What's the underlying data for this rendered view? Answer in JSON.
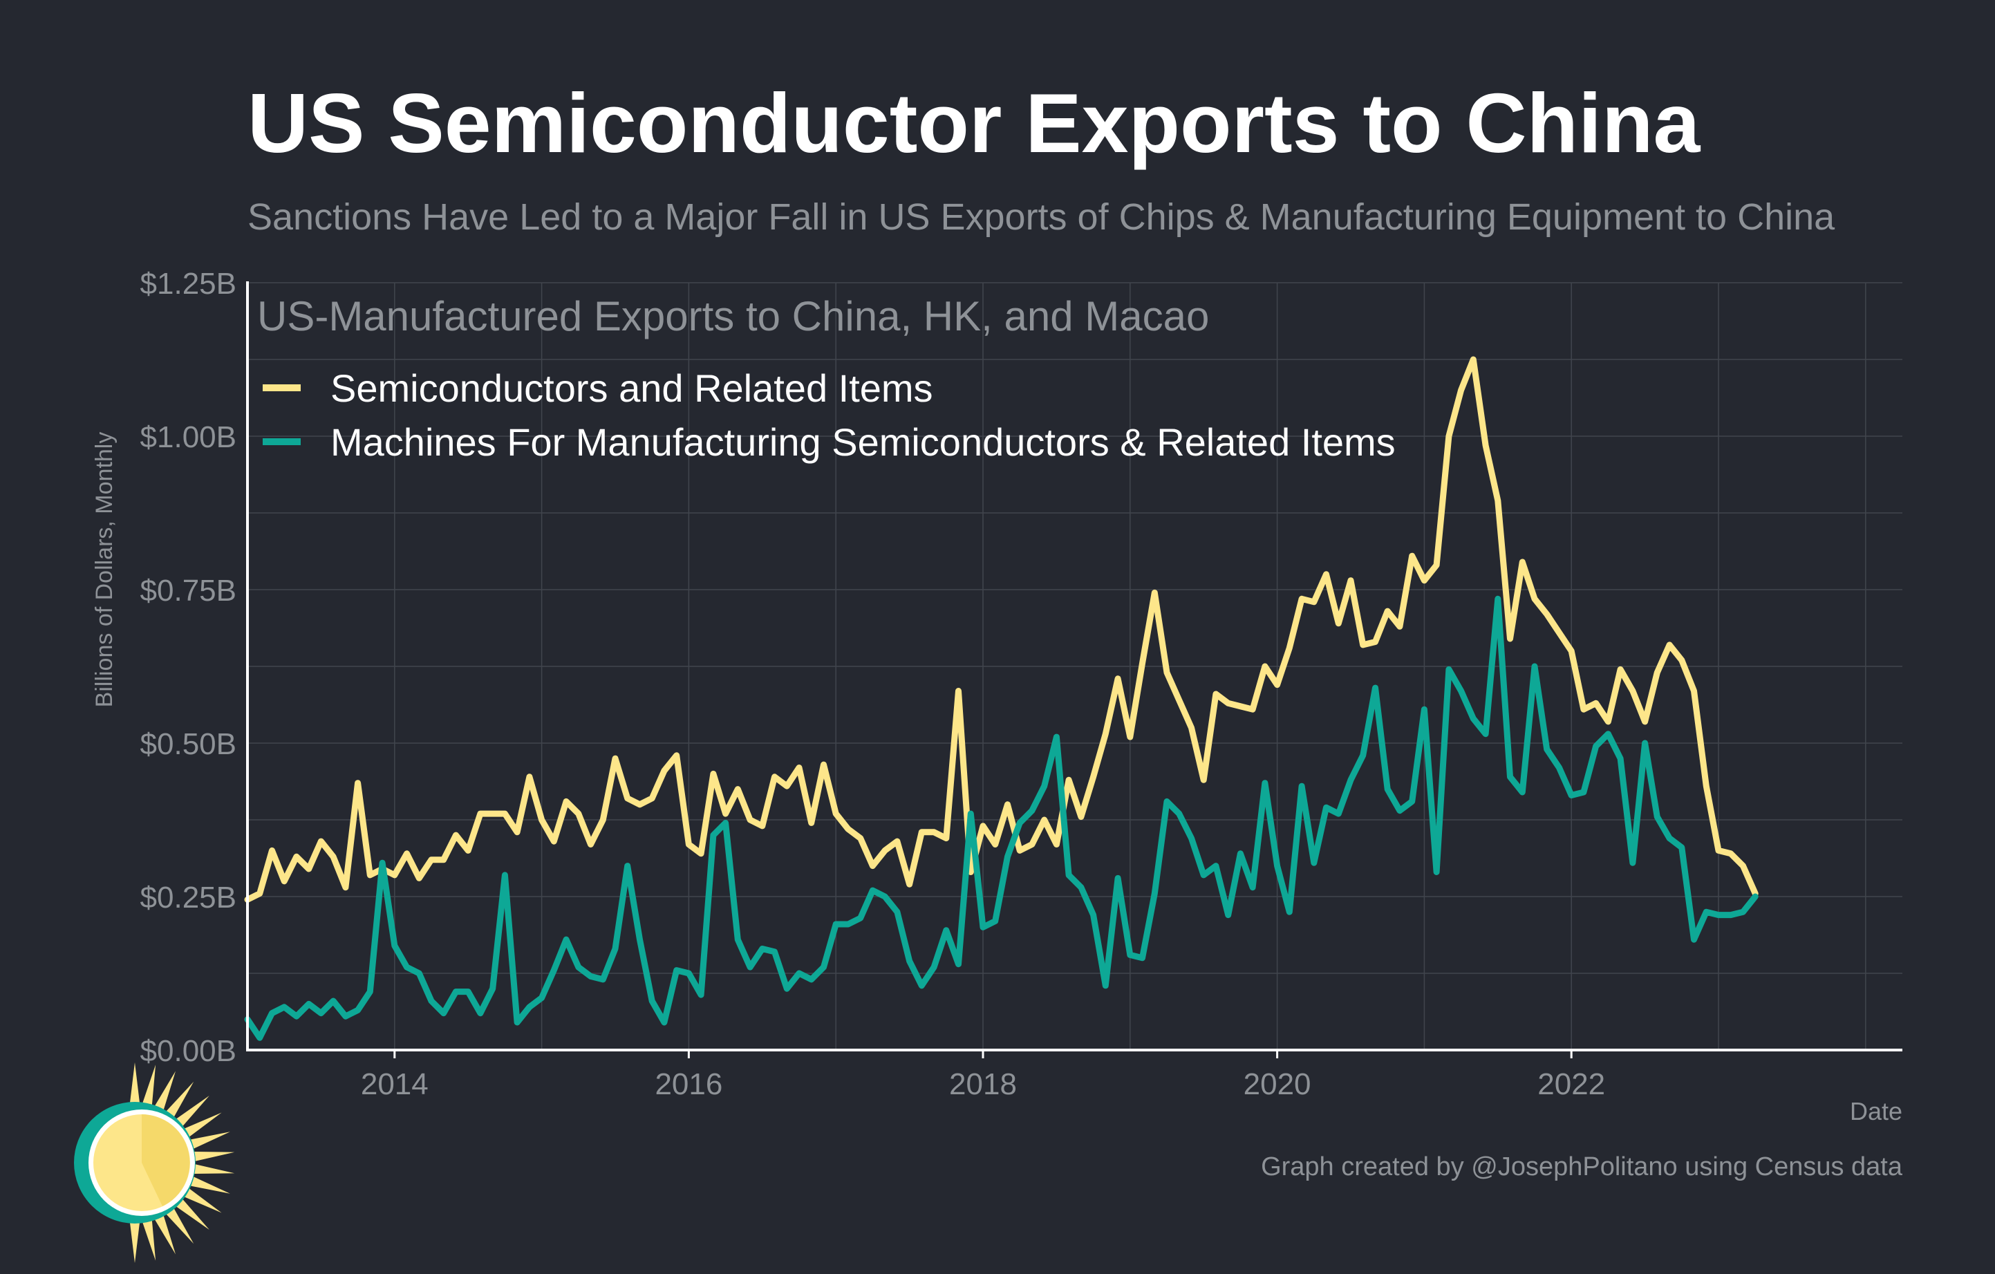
{
  "title": "US Semiconductor Exports to China",
  "subtitle": "Sanctions Have Led to a Major Fall in US Exports of Chips & Manufacturing Equipment to China",
  "credit": "Graph created by @JosephPolitano using Census data",
  "colors": {
    "background": "#252830",
    "grid": "#41454d",
    "axis": "#ffffff",
    "text_muted": "#8e9297",
    "semiconductors": "#fde68a",
    "machines": "#0ea896"
  },
  "chart_data": {
    "type": "line",
    "legend_title": "US-Manufactured Exports to China, HK, and Macao",
    "legend_position": "top-left",
    "xlabel": "Date",
    "ylabel": "Billions of Dollars, Monthly",
    "xlim": [
      2013.0,
      2024.25
    ],
    "ylim": [
      0,
      1.25
    ],
    "x_ticks": [
      2014,
      2016,
      2018,
      2020,
      2022
    ],
    "x_tick_labels": [
      "2014",
      "2016",
      "2018",
      "2020",
      "2022"
    ],
    "y_ticks": [
      0,
      0.25,
      0.5,
      0.75,
      1.0,
      1.25
    ],
    "y_tick_labels": [
      "$0.00B",
      "$0.25B",
      "$0.50B",
      "$0.75B",
      "$1.00B",
      "$1.25B"
    ],
    "grid": true,
    "x_start": "2013-01",
    "x_step": "month",
    "series": [
      {
        "name": "Semiconductors and Related Items",
        "color": "#fde68a",
        "values": [
          0.245,
          0.255,
          0.325,
          0.275,
          0.315,
          0.295,
          0.34,
          0.315,
          0.265,
          0.435,
          0.285,
          0.295,
          0.285,
          0.32,
          0.28,
          0.31,
          0.31,
          0.35,
          0.325,
          0.385,
          0.385,
          0.385,
          0.355,
          0.445,
          0.375,
          0.34,
          0.405,
          0.385,
          0.335,
          0.375,
          0.475,
          0.41,
          0.4,
          0.41,
          0.455,
          0.48,
          0.335,
          0.32,
          0.45,
          0.385,
          0.425,
          0.375,
          0.365,
          0.445,
          0.43,
          0.46,
          0.37,
          0.465,
          0.385,
          0.36,
          0.345,
          0.3,
          0.325,
          0.34,
          0.27,
          0.355,
          0.355,
          0.345,
          0.585,
          0.29,
          0.365,
          0.335,
          0.4,
          0.325,
          0.335,
          0.375,
          0.335,
          0.44,
          0.38,
          0.445,
          0.515,
          0.605,
          0.51,
          0.63,
          0.745,
          0.615,
          0.57,
          0.525,
          0.44,
          0.58,
          0.565,
          0.56,
          0.555,
          0.625,
          0.595,
          0.655,
          0.735,
          0.73,
          0.775,
          0.695,
          0.765,
          0.66,
          0.665,
          0.715,
          0.69,
          0.805,
          0.765,
          0.79,
          1.0,
          1.075,
          1.125,
          0.985,
          0.895,
          0.67,
          0.795,
          0.735,
          0.71,
          0.68,
          0.65,
          0.555,
          0.565,
          0.535,
          0.62,
          0.585,
          0.535,
          0.615,
          0.66,
          0.635,
          0.585,
          0.43,
          0.325,
          0.32,
          0.3,
          0.255
        ]
      },
      {
        "name": "Machines For Manufacturing Semiconductors & Related Items",
        "color": "#0ea896",
        "values": [
          0.05,
          0.02,
          0.06,
          0.07,
          0.055,
          0.075,
          0.06,
          0.08,
          0.055,
          0.065,
          0.095,
          0.305,
          0.17,
          0.135,
          0.125,
          0.08,
          0.06,
          0.095,
          0.095,
          0.06,
          0.1,
          0.285,
          0.045,
          0.07,
          0.085,
          0.13,
          0.18,
          0.135,
          0.12,
          0.115,
          0.165,
          0.3,
          0.18,
          0.08,
          0.045,
          0.13,
          0.125,
          0.09,
          0.35,
          0.37,
          0.18,
          0.135,
          0.165,
          0.16,
          0.1,
          0.125,
          0.115,
          0.135,
          0.205,
          0.205,
          0.215,
          0.26,
          0.25,
          0.225,
          0.145,
          0.105,
          0.135,
          0.195,
          0.14,
          0.385,
          0.2,
          0.21,
          0.315,
          0.37,
          0.39,
          0.43,
          0.51,
          0.285,
          0.265,
          0.22,
          0.105,
          0.28,
          0.155,
          0.15,
          0.255,
          0.405,
          0.385,
          0.345,
          0.285,
          0.3,
          0.22,
          0.32,
          0.265,
          0.435,
          0.3,
          0.225,
          0.43,
          0.305,
          0.395,
          0.385,
          0.44,
          0.48,
          0.59,
          0.425,
          0.39,
          0.405,
          0.555,
          0.29,
          0.62,
          0.585,
          0.54,
          0.515,
          0.735,
          0.445,
          0.42,
          0.625,
          0.49,
          0.46,
          0.415,
          0.42,
          0.495,
          0.515,
          0.475,
          0.305,
          0.5,
          0.38,
          0.345,
          0.33,
          0.18,
          0.225,
          0.22,
          0.22,
          0.225,
          0.25
        ]
      }
    ]
  }
}
